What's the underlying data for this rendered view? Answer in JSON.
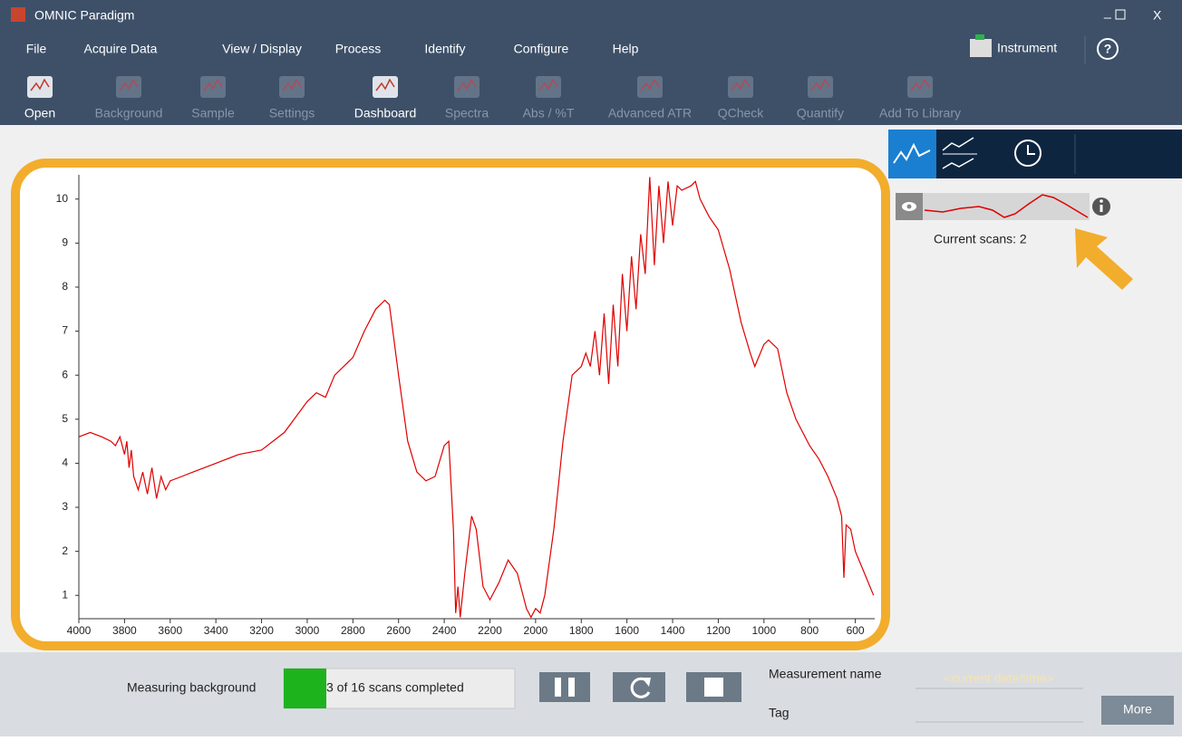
{
  "window": {
    "title": "OMNIC Paradigm",
    "controls": [
      "_",
      "X"
    ]
  },
  "menu": [
    "File",
    "Acquire Data",
    "View / Display",
    "Process",
    "Identify",
    "Configure",
    "Help"
  ],
  "instrument": "Instrument",
  "help": "?",
  "toolbar": [
    {
      "label": "Open",
      "enabled": true
    },
    {
      "label": "Background",
      "enabled": false
    },
    {
      "label": "Sample",
      "enabled": false
    },
    {
      "label": "Settings",
      "enabled": false
    },
    {
      "label": "Dashboard",
      "enabled": true
    },
    {
      "label": "Spectra",
      "enabled": false
    },
    {
      "label": "Abs / %T",
      "enabled": false
    },
    {
      "label": "Advanced ATR",
      "enabled": false
    },
    {
      "label": "QCheck",
      "enabled": false
    },
    {
      "label": "Quantify",
      "enabled": false
    },
    {
      "label": "Add To Library",
      "enabled": false
    }
  ],
  "chart_data": {
    "type": "line",
    "color": "#e00000",
    "x": [
      4000,
      3950,
      3900,
      3860,
      3840,
      3820,
      3800,
      3790,
      3780,
      3770,
      3760,
      3740,
      3720,
      3700,
      3680,
      3660,
      3640,
      3620,
      3600,
      3550,
      3500,
      3400,
      3300,
      3200,
      3100,
      3000,
      2960,
      2920,
      2880,
      2800,
      2750,
      2700,
      2660,
      2640,
      2600,
      2560,
      2520,
      2480,
      2440,
      2400,
      2380,
      2360,
      2350,
      2340,
      2330,
      2310,
      2280,
      2260,
      2230,
      2200,
      2160,
      2120,
      2080,
      2040,
      2020,
      2000,
      1980,
      1960,
      1920,
      1880,
      1840,
      1800,
      1780,
      1760,
      1740,
      1720,
      1700,
      1680,
      1660,
      1640,
      1620,
      1600,
      1580,
      1560,
      1540,
      1520,
      1500,
      1480,
      1460,
      1440,
      1420,
      1400,
      1380,
      1360,
      1320,
      1300,
      1280,
      1240,
      1200,
      1150,
      1100,
      1060,
      1040,
      1000,
      980,
      940,
      900,
      860,
      800,
      760,
      720,
      680,
      660,
      650,
      640,
      620,
      600,
      560,
      520
    ],
    "values": [
      4.6,
      4.7,
      4.6,
      4.5,
      4.4,
      4.6,
      4.2,
      4.5,
      3.9,
      4.3,
      3.7,
      3.4,
      3.8,
      3.3,
      3.9,
      3.2,
      3.7,
      3.4,
      3.6,
      3.7,
      3.8,
      4.0,
      4.2,
      4.3,
      4.7,
      5.4,
      5.6,
      5.5,
      6.0,
      6.4,
      7.0,
      7.5,
      7.7,
      7.6,
      6.0,
      4.5,
      3.8,
      3.6,
      3.7,
      4.4,
      4.5,
      2.5,
      0.6,
      1.2,
      0.5,
      1.5,
      2.8,
      2.5,
      1.2,
      0.9,
      1.3,
      1.8,
      1.5,
      0.7,
      0.5,
      0.7,
      0.6,
      1.0,
      2.5,
      4.5,
      6.0,
      6.2,
      6.5,
      6.2,
      7.0,
      6.0,
      7.4,
      5.8,
      7.6,
      6.2,
      8.3,
      7.0,
      8.7,
      7.5,
      9.2,
      8.3,
      10.5,
      8.5,
      10.3,
      9.0,
      10.4,
      9.4,
      10.3,
      10.2,
      10.3,
      10.4,
      10.0,
      9.6,
      9.3,
      8.4,
      7.2,
      6.5,
      6.2,
      6.7,
      6.8,
      6.6,
      5.6,
      5.0,
      4.4,
      4.1,
      3.7,
      3.2,
      2.8,
      1.4,
      2.6,
      2.5,
      2.0,
      1.5,
      1.0
    ],
    "xlim": [
      4000,
      515
    ],
    "ylim": [
      0.47,
      10.55
    ],
    "xticks": [
      4000,
      3800,
      3600,
      3400,
      3200,
      3000,
      2800,
      2600,
      2400,
      2200,
      2000,
      1800,
      1600,
      1400,
      1200,
      1000,
      800,
      600
    ],
    "yticks": [
      1,
      2,
      3,
      4,
      5,
      6,
      7,
      8,
      9,
      10
    ]
  },
  "side_panel": {
    "current_scans": "Current scans: 2"
  },
  "status": {
    "label": "Measuring background",
    "progress": "3 of 16 scans completed",
    "measurement_name_label": "Measurement name",
    "measurement_name_placeholder": "<current date/time>",
    "tag_label": "Tag",
    "more": "More"
  }
}
